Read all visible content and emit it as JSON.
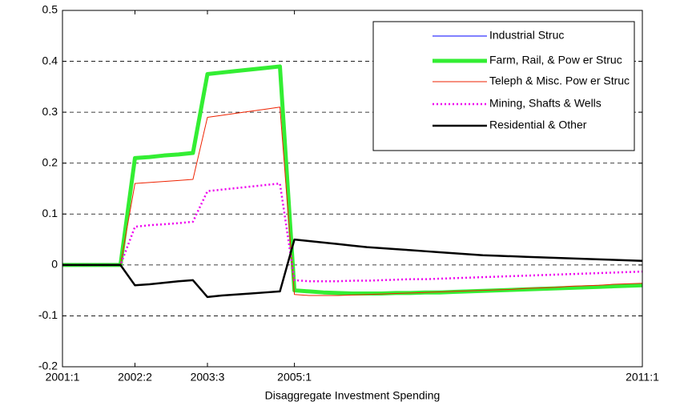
{
  "chart_data": {
    "type": "line",
    "xlabel": "Disaggregate Investment Spending",
    "categories": [
      "2001:1",
      null,
      null,
      null,
      null,
      "2002:2",
      null,
      null,
      null,
      null,
      "2003:3",
      null,
      null,
      null,
      null,
      null,
      "2005:1",
      null,
      null,
      null,
      null,
      null,
      null,
      null,
      null,
      null,
      null,
      null,
      null,
      null,
      null,
      null,
      null,
      null,
      null,
      null,
      null,
      null,
      null,
      null,
      "2011:1"
    ],
    "ylim": [
      -0.2,
      0.5
    ],
    "yticks": [
      -0.2,
      -0.1,
      0,
      0.1,
      0.2,
      0.3,
      0.4,
      0.5
    ],
    "grid": true,
    "legend": "upper right",
    "series": [
      {
        "name": "Industrial Struc",
        "color": "#0000ff",
        "linewidth": 1,
        "linestyle": "solid",
        "values": [
          0,
          0,
          0,
          0,
          0,
          0.21,
          0.212,
          0.215,
          0.217,
          0.22,
          0.375,
          0.378,
          0.381,
          0.384,
          0.387,
          0.39,
          -0.05,
          -0.052,
          -0.054,
          -0.055,
          -0.056,
          -0.056,
          -0.056,
          -0.055,
          -0.055,
          -0.054,
          -0.054,
          -0.053,
          -0.052,
          -0.051,
          -0.05,
          -0.049,
          -0.048,
          -0.047,
          -0.046,
          -0.045,
          -0.044,
          -0.043,
          -0.042,
          -0.041,
          -0.04
        ]
      },
      {
        "name": "Farm, Rail, & Pow er Struc",
        "color": "#33ee33",
        "linewidth": 5,
        "linestyle": "solid",
        "values": [
          0,
          0,
          0,
          0,
          0,
          0.21,
          0.212,
          0.215,
          0.217,
          0.22,
          0.375,
          0.378,
          0.381,
          0.384,
          0.387,
          0.39,
          -0.05,
          -0.052,
          -0.054,
          -0.055,
          -0.056,
          -0.056,
          -0.056,
          -0.055,
          -0.055,
          -0.054,
          -0.054,
          -0.053,
          -0.052,
          -0.051,
          -0.05,
          -0.049,
          -0.048,
          -0.047,
          -0.046,
          -0.045,
          -0.044,
          -0.043,
          -0.042,
          -0.041,
          -0.04
        ]
      },
      {
        "name": "Teleph & Misc. Pow er Struc",
        "color": "#ee2200",
        "linewidth": 1,
        "linestyle": "solid",
        "values": [
          0,
          0,
          0,
          0,
          0,
          0.16,
          0.162,
          0.164,
          0.166,
          0.168,
          0.29,
          0.294,
          0.298,
          0.302,
          0.306,
          0.31,
          -0.058,
          -0.06,
          -0.06,
          -0.06,
          -0.059,
          -0.058,
          -0.057,
          -0.056,
          -0.055,
          -0.054,
          -0.053,
          -0.052,
          -0.051,
          -0.05,
          -0.049,
          -0.048,
          -0.046,
          -0.045,
          -0.044,
          -0.042,
          -0.041,
          -0.04,
          -0.038,
          -0.037,
          -0.036
        ]
      },
      {
        "name": "Mining, Shafts & Wells",
        "color": "#ee00ee",
        "linewidth": 2.5,
        "linestyle": "dotted",
        "values": [
          0,
          0,
          0,
          0,
          0,
          0.075,
          0.078,
          0.08,
          0.082,
          0.085,
          0.145,
          0.148,
          0.151,
          0.154,
          0.157,
          0.16,
          -0.03,
          -0.032,
          -0.032,
          -0.032,
          -0.031,
          -0.031,
          -0.03,
          -0.029,
          -0.028,
          -0.028,
          -0.027,
          -0.026,
          -0.025,
          -0.024,
          -0.023,
          -0.022,
          -0.021,
          -0.02,
          -0.019,
          -0.018,
          -0.017,
          -0.016,
          -0.015,
          -0.014,
          -0.013
        ]
      },
      {
        "name": "Residential & Other",
        "color": "#000000",
        "linewidth": 2.5,
        "linestyle": "solid",
        "values": [
          0,
          0,
          0,
          0,
          0,
          -0.04,
          -0.038,
          -0.035,
          -0.032,
          -0.03,
          -0.063,
          -0.06,
          -0.058,
          -0.056,
          -0.054,
          -0.052,
          0.05,
          0.047,
          0.044,
          0.041,
          0.038,
          0.035,
          0.033,
          0.031,
          0.029,
          0.027,
          0.025,
          0.023,
          0.021,
          0.019,
          0.018,
          0.017,
          0.016,
          0.015,
          0.014,
          0.013,
          0.012,
          0.011,
          0.01,
          0.009,
          0.008
        ]
      }
    ]
  }
}
